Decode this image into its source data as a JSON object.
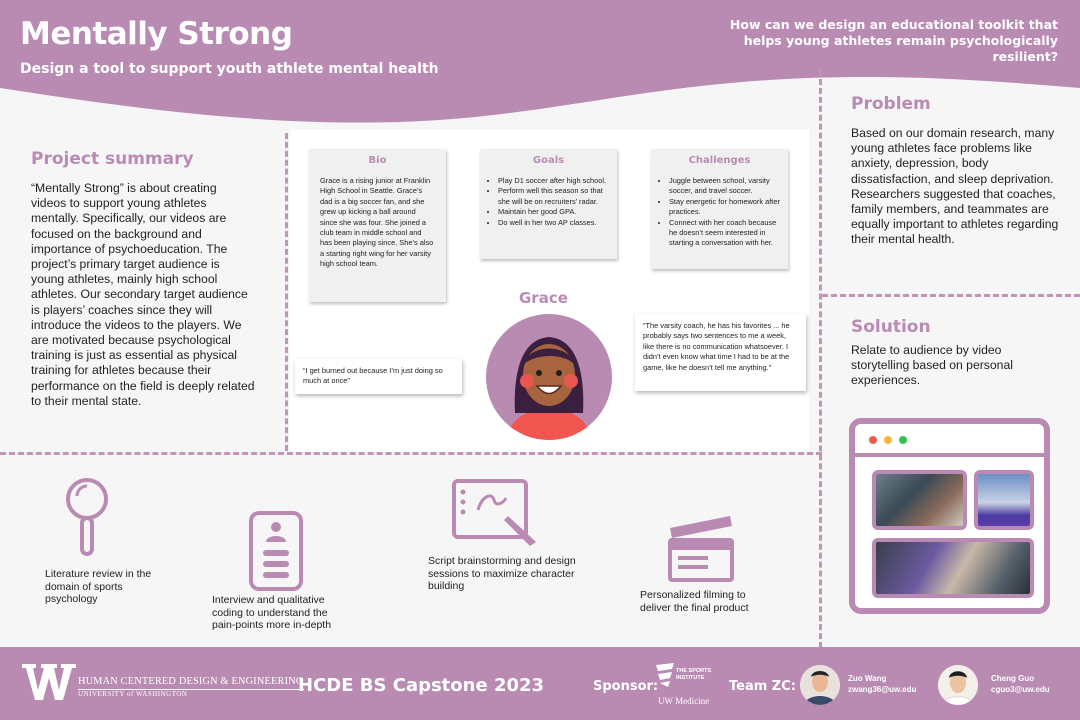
{
  "header": {
    "title": "Mentally Strong",
    "subtitle": "Design a tool to support youth athlete mental health",
    "question": "How can we design an educational toolkit that helps young athletes remain psychologically resilient?"
  },
  "project_summary": {
    "heading": "Project summary",
    "body": "“Mentally Strong” is about creating videos to support young athletes mentally. Specifically, our videos are focused on the background and importance of psychoeducation. The project’s primary target audience is young athletes, mainly high school athletes. Our secondary target audience is players’ coaches since they will introduce the videos to the players. We are motivated because psychological training is just as essential as physical training for athletes because their performance on the field is deeply related to their mental state."
  },
  "persona": {
    "name": "Grace",
    "bio": {
      "heading": "Bio",
      "text": "Grace is a rising junior at Franklin High School in Seattle. Grace’s dad is a big soccer fan, and she grew up kicking a ball around since she was four. She joined a club team in middle school and has been playing since. She’s also a starting right wing for her varsity high school team."
    },
    "goals": {
      "heading": "Goals",
      "items": [
        "Play D1 soccer after high school.",
        "Perform well this season so that she will be on recruiters’ radar.",
        "Maintain her good GPA.",
        "Do well in her two AP classes."
      ]
    },
    "challenges": {
      "heading": "Challenges",
      "items": [
        "Juggle between school, varsity soccer, and travel soccer.",
        "Stay energetic for homework after practices.",
        "Connect with her coach because he doesn’t seem interested in starting a conversation with her."
      ]
    },
    "quote_left": "“I get burned out because I’m just doing so much at once”",
    "quote_right": "“The varsity coach, he has his favorites ... he probably says two sentences to me a week, like there is no communication whatsoever. I didn’t even know what time I had to be at the game, like he doesn’t tell me anything.”"
  },
  "problem": {
    "heading": "Problem",
    "body": "Based on our domain research, many young athletes face problems like anxiety, depression, body dissatisfaction, and sleep deprivation. Researchers suggested that coaches, family members, and teammates are equally important to athletes regarding their mental health."
  },
  "solution": {
    "heading": "Solution",
    "body": "Relate to audience by video storytelling based on personal experiences."
  },
  "process": [
    {
      "icon": "magnifier-icon",
      "text": "Literature review in the domain of sports psychology"
    },
    {
      "icon": "id-badge-icon",
      "text": "Interview and qualitative coding to understand the pain-points more in-depth"
    },
    {
      "icon": "drawing-tablet-icon",
      "text": "Script brainstorming and design sessions to maximize character building"
    },
    {
      "icon": "clapperboard-icon",
      "text": "Personalized filming to deliver the final product"
    }
  ],
  "footer": {
    "uw_dept": "HUMAN CENTERED DESIGN & ENGINEERING",
    "uw_name": "UNIVERSITY of WASHINGTON",
    "capstone": "HCDE BS Capstone 2023",
    "sponsor_label": "Sponsor:",
    "sponsor_name": "THE SPORTS INSTITUTE",
    "sponsor_sub": "UW Medicine",
    "team_label": "Team ZC:",
    "members": [
      {
        "name": "Zuo Wang",
        "email": "zwang36@uw.edu"
      },
      {
        "name": "Cheng Guo",
        "email": "cguo3@uw.edu"
      }
    ]
  },
  "colors": {
    "accent": "#b98bb3",
    "background": "#f7f6f7"
  }
}
